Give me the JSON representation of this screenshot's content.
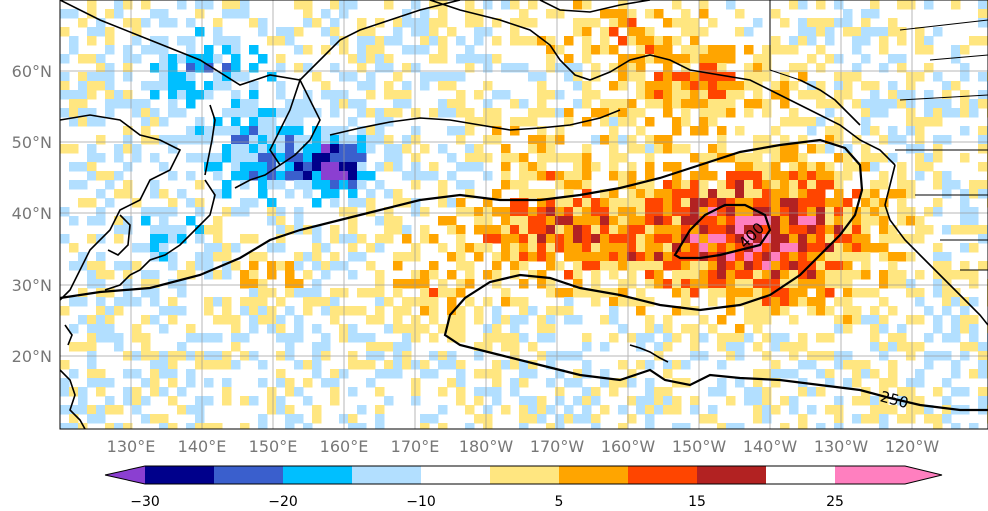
{
  "map": {
    "lat_labels": [
      "60°N",
      "50°N",
      "40°N",
      "30°N",
      "20°N"
    ],
    "lon_labels": [
      "130°E",
      "140°E",
      "150°E",
      "160°E",
      "170°E",
      "180°W",
      "170°W",
      "160°W",
      "150°W",
      "140°W",
      "130°W",
      "120°W"
    ],
    "contour_labels": {
      "inner": "400",
      "outer": "250"
    }
  },
  "colorbar": {
    "tick_labels": [
      "−30",
      "−20",
      "−10",
      "5",
      "15",
      "25"
    ],
    "colors": [
      "#8b3fd1",
      "#00008b",
      "#3a5fcd",
      "#00bfff",
      "#b2dfff",
      "#ffffff",
      "#ffe680",
      "#ffa500",
      "#ff4500",
      "#b22222",
      "#ff7fbf"
    ]
  }
}
